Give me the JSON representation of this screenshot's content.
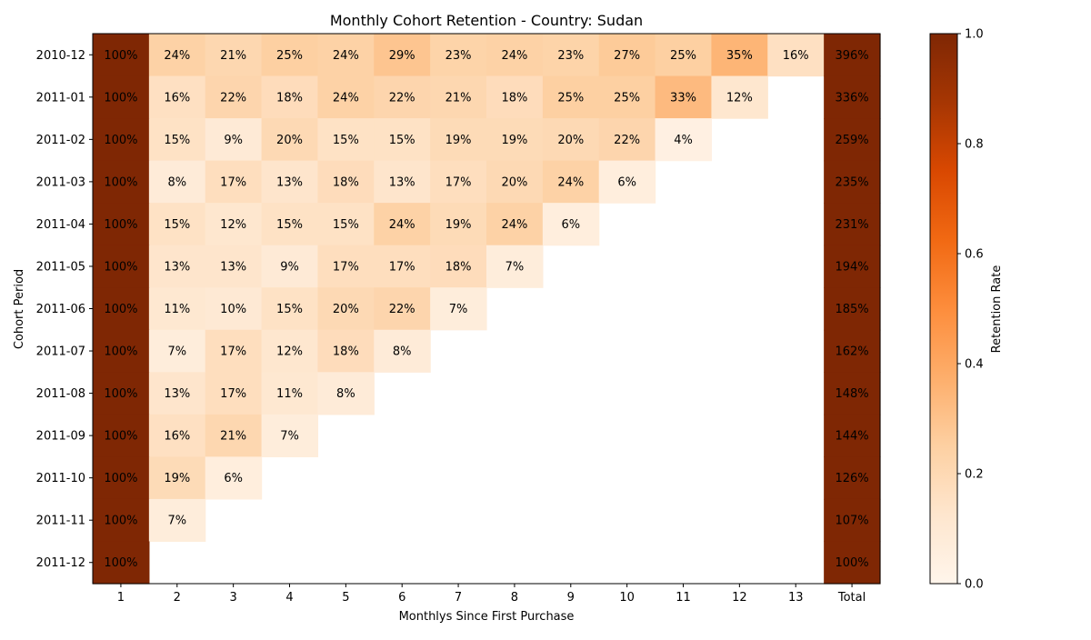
{
  "chart_data": {
    "type": "heatmap",
    "title": "Monthly Cohort Retention - Country: Sudan",
    "xlabel": "Monthlys Since First Purchase",
    "ylabel": "Cohort Period",
    "x_categories": [
      "1",
      "2",
      "3",
      "4",
      "5",
      "6",
      "7",
      "8",
      "9",
      "10",
      "11",
      "12",
      "13",
      "Total"
    ],
    "y_categories": [
      "2010-12",
      "2011-01",
      "2011-02",
      "2011-03",
      "2011-04",
      "2011-05",
      "2011-06",
      "2011-07",
      "2011-08",
      "2011-09",
      "2011-10",
      "2011-11",
      "2011-12"
    ],
    "values": [
      [
        1.0,
        0.24,
        0.21,
        0.25,
        0.24,
        0.29,
        0.23,
        0.24,
        0.23,
        0.27,
        0.25,
        0.35,
        0.16,
        3.96
      ],
      [
        1.0,
        0.16,
        0.22,
        0.18,
        0.24,
        0.22,
        0.21,
        0.18,
        0.25,
        0.25,
        0.33,
        0.12,
        null,
        3.36
      ],
      [
        1.0,
        0.15,
        0.09,
        0.2,
        0.15,
        0.15,
        0.19,
        0.19,
        0.2,
        0.22,
        0.04,
        null,
        null,
        2.59
      ],
      [
        1.0,
        0.08,
        0.17,
        0.13,
        0.18,
        0.13,
        0.17,
        0.2,
        0.24,
        0.06,
        null,
        null,
        null,
        2.35
      ],
      [
        1.0,
        0.15,
        0.12,
        0.15,
        0.15,
        0.24,
        0.19,
        0.24,
        0.06,
        null,
        null,
        null,
        null,
        2.31
      ],
      [
        1.0,
        0.13,
        0.13,
        0.09,
        0.17,
        0.17,
        0.18,
        0.07,
        null,
        null,
        null,
        null,
        null,
        1.94
      ],
      [
        1.0,
        0.11,
        0.1,
        0.15,
        0.2,
        0.22,
        0.07,
        null,
        null,
        null,
        null,
        null,
        null,
        1.85
      ],
      [
        1.0,
        0.07,
        0.17,
        0.12,
        0.18,
        0.08,
        null,
        null,
        null,
        null,
        null,
        null,
        null,
        1.62
      ],
      [
        1.0,
        0.13,
        0.17,
        0.11,
        0.08,
        null,
        null,
        null,
        null,
        null,
        null,
        null,
        null,
        1.48
      ],
      [
        1.0,
        0.16,
        0.21,
        0.07,
        null,
        null,
        null,
        null,
        null,
        null,
        null,
        null,
        null,
        1.44
      ],
      [
        1.0,
        0.19,
        0.06,
        null,
        null,
        null,
        null,
        null,
        null,
        null,
        null,
        null,
        null,
        1.26
      ],
      [
        1.0,
        0.07,
        null,
        null,
        null,
        null,
        null,
        null,
        null,
        null,
        null,
        null,
        null,
        1.07
      ],
      [
        1.0,
        null,
        null,
        null,
        null,
        null,
        null,
        null,
        null,
        null,
        null,
        null,
        null,
        1.0
      ]
    ],
    "value_labels": [
      [
        "100%",
        "24%",
        "21%",
        "25%",
        "24%",
        "29%",
        "23%",
        "24%",
        "23%",
        "27%",
        "25%",
        "35%",
        "16%",
        "396%"
      ],
      [
        "100%",
        "16%",
        "22%",
        "18%",
        "24%",
        "22%",
        "21%",
        "18%",
        "25%",
        "25%",
        "33%",
        "12%",
        "",
        "336%"
      ],
      [
        "100%",
        "15%",
        "9%",
        "20%",
        "15%",
        "15%",
        "19%",
        "19%",
        "20%",
        "22%",
        "4%",
        "",
        "",
        "259%"
      ],
      [
        "100%",
        "8%",
        "17%",
        "13%",
        "18%",
        "13%",
        "17%",
        "20%",
        "24%",
        "6%",
        "",
        "",
        "",
        "235%"
      ],
      [
        "100%",
        "15%",
        "12%",
        "15%",
        "15%",
        "24%",
        "19%",
        "24%",
        "6%",
        "",
        "",
        "",
        "",
        "231%"
      ],
      [
        "100%",
        "13%",
        "13%",
        "9%",
        "17%",
        "17%",
        "18%",
        "7%",
        "",
        "",
        "",
        "",
        "",
        "194%"
      ],
      [
        "100%",
        "11%",
        "10%",
        "15%",
        "20%",
        "22%",
        "7%",
        "",
        "",
        "",
        "",
        "",
        "",
        "185%"
      ],
      [
        "100%",
        "7%",
        "17%",
        "12%",
        "18%",
        "8%",
        "",
        "",
        "",
        "",
        "",
        "",
        "",
        "162%"
      ],
      [
        "100%",
        "13%",
        "17%",
        "11%",
        "8%",
        "",
        "",
        "",
        "",
        "",
        "",
        "",
        "",
        "148%"
      ],
      [
        "100%",
        "16%",
        "21%",
        "7%",
        "",
        "",
        "",
        "",
        "",
        "",
        "",
        "",
        "",
        "144%"
      ],
      [
        "100%",
        "19%",
        "6%",
        "",
        "",
        "",
        "",
        "",
        "",
        "",
        "",
        "",
        "",
        "126%"
      ],
      [
        "100%",
        "7%",
        "",
        "",
        "",
        "",
        "",
        "",
        "",
        "",
        "",
        "",
        "",
        "107%"
      ],
      [
        "100%",
        "",
        "",
        "",
        "",
        "",
        "",
        "",
        "",
        "",
        "",
        "",
        "",
        "100%"
      ]
    ],
    "colorbar": {
      "label": "Retention Rate",
      "range": [
        0.0,
        1.0
      ],
      "ticks": [
        "0.0",
        "0.2",
        "0.4",
        "0.6",
        "0.8",
        "1.0"
      ],
      "colormap": "Oranges"
    },
    "grid": false
  }
}
